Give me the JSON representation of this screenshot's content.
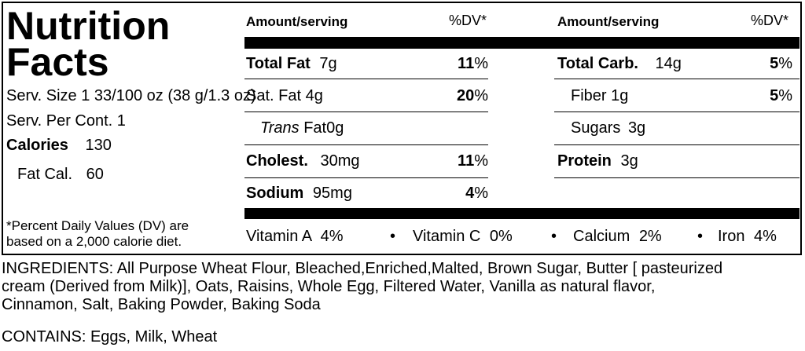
{
  "title": {
    "line1": "Nutrition",
    "line2": "Facts"
  },
  "serving": {
    "size_label": "Serv. Size",
    "size_value": "1 33/100 oz  (38 g/1.3 oz)",
    "per_cont_label": "Serv. Per Cont.",
    "per_cont_value": "1",
    "calories_label": "Calories",
    "calories_value": "130",
    "fat_cal_label": "Fat Cal.",
    "fat_cal_value": "60",
    "footnote_line1": "*Percent Daily Values (DV) are",
    "footnote_line2": "based on a 2,000 calorie diet."
  },
  "headers": {
    "amount_left": "Amount/serving",
    "dv_left": "%DV*",
    "amount_right": "Amount/serving",
    "dv_right": "%DV*"
  },
  "left_rows": [
    {
      "label": "Total Fat",
      "amount": "7g",
      "dv_num": "11",
      "dv_sign": "%"
    },
    {
      "label": "Sat. Fat",
      "amount": "4g",
      "dv_num": "20",
      "dv_sign": "%"
    },
    {
      "label_italic": "Trans",
      "label": "Fat",
      "amount": "0g"
    },
    {
      "label": "Cholest.",
      "amount": "30mg",
      "dv_num": "11",
      "dv_sign": "%"
    },
    {
      "label": "Sodium",
      "amount": "95mg",
      "dv_num": "4",
      "dv_sign": "%"
    }
  ],
  "right_rows": [
    {
      "label": "Total Carb.",
      "amount": "14g",
      "dv_num": "5",
      "dv_sign": "%"
    },
    {
      "label": "Fiber",
      "amount": "1g",
      "dv_num": "5",
      "dv_sign": "%"
    },
    {
      "label": "Sugars",
      "amount": "3g"
    },
    {
      "label": "Protein",
      "amount": "3g"
    }
  ],
  "vitamins": [
    {
      "name": "Vitamin A",
      "value": "4%"
    },
    {
      "name": "Vitamin C",
      "value": "0%"
    },
    {
      "name": "Calcium",
      "value": "2%"
    },
    {
      "name": "Iron",
      "value": "4%"
    }
  ],
  "bullet": "•",
  "ingredients": {
    "line1": "INGREDIENTS: All Purpose Wheat Flour, Bleached,Enriched,Malted, Brown Sugar, Butter [ pasteurized",
    "line2": "cream (Derived from Milk)], Oats, Raisins, Whole Egg, Filtered Water, Vanilla as natural flavor,",
    "line3": "Cinnamon, Salt, Baking Powder, Baking Soda"
  },
  "contains": "CONTAINS: Eggs, Milk, Wheat"
}
